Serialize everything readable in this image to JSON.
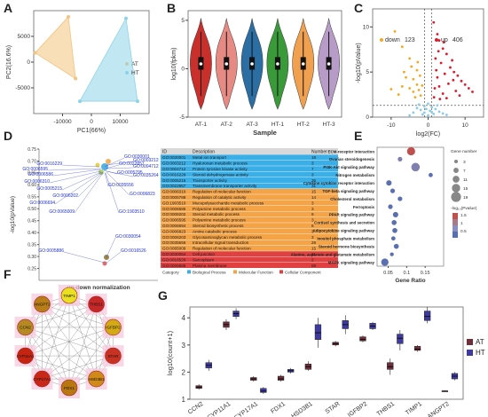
{
  "colors": {
    "AT": "#f2c47e",
    "HT": "#8dd3e8",
    "violin": [
      "#c9302c",
      "#e88a84",
      "#2b6ea3",
      "#3a9a3a",
      "#f0a04e",
      "#b89cc8"
    ],
    "volcano_up": "#e0182b",
    "volcano_down": "#f2a91f",
    "volcano_ns": "#8ecbe6",
    "box_AT": "#6e2e3a",
    "box_HT": "#3e3aa0",
    "go_band": [
      "#3aaee6",
      "#f4a347",
      "#e04040"
    ]
  },
  "panels": {
    "A": {
      "label": "A"
    },
    "B": {
      "label": "B"
    },
    "C": {
      "label": "C"
    },
    "D": {
      "label": "D"
    },
    "E": {
      "label": "E"
    },
    "F": {
      "label": "F"
    },
    "G": {
      "label": "G"
    }
  },
  "chart_data": [
    {
      "panel": "A",
      "type": "scatter",
      "xlabel": "PC1(66%)",
      "ylabel": "PC2(16.6%)",
      "xlim": [
        -20000,
        20000
      ],
      "ylim": [
        -10000,
        10000
      ],
      "xticks": [
        -10000,
        0,
        10000
      ],
      "yticks": [
        -5000,
        0,
        5000
      ],
      "series": [
        {
          "name": "AT",
          "points": [
            [
              -19500,
              1800
            ],
            [
              -8000,
              8800
            ],
            [
              -5500,
              -3200
            ]
          ]
        },
        {
          "name": "HT",
          "points": [
            [
              -4000,
              -7600
            ],
            [
              12000,
              8500
            ],
            [
              16000,
              -7600
            ]
          ]
        }
      ],
      "legend_position": "right"
    },
    {
      "panel": "B",
      "type": "violin",
      "xlabel": "Sample",
      "ylabel": "log10(fpkm)",
      "ylim": [
        -5,
        6
      ],
      "yticks": [
        -5,
        0,
        5
      ],
      "categories": [
        "AT-1",
        "AT-2",
        "AT-3",
        "HT-1",
        "HT-2",
        "HT-3"
      ],
      "medians": [
        0.5,
        0.5,
        0.5,
        0.5,
        0.5,
        0.5
      ],
      "q1": [
        -0.1,
        -0.1,
        -0.1,
        -0.1,
        -0.1,
        -0.1
      ],
      "q3": [
        1.2,
        1.2,
        1.2,
        1.2,
        1.2,
        1.2
      ],
      "min": [
        -4.2,
        -4.2,
        -4.2,
        -4.2,
        -4.2,
        -4.2
      ],
      "max": [
        5.2,
        5.2,
        5.2,
        5.2,
        5.2,
        5.2
      ]
    },
    {
      "panel": "C",
      "type": "scatter",
      "xlabel": "log2(FC)",
      "ylabel": "-log10(pValue)",
      "xlim": [
        -15,
        15
      ],
      "ylim": [
        0,
        12
      ],
      "xticks": [
        -10,
        0,
        10
      ],
      "yticks": [
        0,
        5,
        10
      ],
      "annotations": [
        {
          "text": "down",
          "count": "123"
        },
        {
          "text": "up",
          "count": "406"
        }
      ],
      "series": [
        {
          "name": "down",
          "points": [
            [
              -9,
              9.5
            ],
            [
              -7,
              7.8
            ],
            [
              -5,
              6.5
            ],
            [
              -6.5,
              5
            ],
            [
              -4,
              4.2
            ],
            [
              -3,
              3.6
            ],
            [
              -2.5,
              3
            ],
            [
              -5,
              3.2
            ],
            [
              -8,
              2.5
            ],
            [
              -3.5,
              2.2
            ],
            [
              -2,
              2.4
            ],
            [
              -6,
              4.4
            ],
            [
              -4.5,
              5.6
            ],
            [
              -3,
              5.2
            ],
            [
              -2.2,
              4.6
            ],
            [
              -1.6,
              3.5
            ],
            [
              -7,
              3.4
            ],
            [
              -10,
              3.1
            ],
            [
              -4,
              2.8
            ],
            [
              -2.8,
              6.1
            ]
          ]
        },
        {
          "name": "up",
          "points": [
            [
              1.5,
              10.5
            ],
            [
              2.5,
              9.2
            ],
            [
              3,
              8.5
            ],
            [
              4,
              7.6
            ],
            [
              5,
              7
            ],
            [
              2,
              6.5
            ],
            [
              3.5,
              6
            ],
            [
              6,
              5.5
            ],
            [
              7,
              5
            ],
            [
              8,
              4.6
            ],
            [
              2.5,
              4.4
            ],
            [
              4.5,
              4.8
            ],
            [
              9,
              4
            ],
            [
              10,
              3.6
            ],
            [
              11,
              3.2
            ],
            [
              3,
              3.4
            ],
            [
              5.5,
              3.7
            ],
            [
              1.8,
              3.2
            ],
            [
              2.2,
              5.2
            ],
            [
              6.5,
              6.3
            ],
            [
              12,
              2.8
            ],
            [
              4,
              2.6
            ],
            [
              8.5,
              2.4
            ],
            [
              1.6,
              2.2
            ],
            [
              3.2,
              2
            ],
            [
              5,
              2.1
            ],
            [
              7.5,
              2.9
            ],
            [
              2.8,
              7.3
            ],
            [
              4.2,
              8.3
            ],
            [
              6.8,
              4.1
            ]
          ]
        },
        {
          "name": "ns",
          "points": [
            [
              -3,
              1
            ],
            [
              -2,
              0.8
            ],
            [
              -1,
              1.2
            ],
            [
              0,
              1.5
            ],
            [
              1,
              1.1
            ],
            [
              2,
              0.9
            ],
            [
              3,
              0.6
            ],
            [
              -4,
              0.5
            ],
            [
              4,
              0.4
            ],
            [
              -1.5,
              0.3
            ],
            [
              1.5,
              0.35
            ],
            [
              0.5,
              0.7
            ],
            [
              -0.5,
              0.9
            ],
            [
              -2.5,
              1.4
            ],
            [
              2.5,
              1.3
            ],
            [
              -5,
              0.2
            ],
            [
              5,
              0.25
            ],
            [
              0,
              0.2
            ],
            [
              -1,
              0.5
            ],
            [
              1,
              0.55
            ]
          ]
        }
      ]
    },
    {
      "panel": "D",
      "type": "scatter",
      "xlabel": "up-down normalization",
      "ylabel": "-log10(pValue)",
      "ylim": [
        0.2,
        0.75
      ],
      "yticks": [
        0.25,
        0.3,
        0.35,
        0.4,
        0.45,
        0.5,
        0.55,
        0.6,
        0.65,
        0.7,
        0.75
      ],
      "labels": [
        "GO:0030001",
        "GO:0003212",
        "GO:0022857",
        "GO:0016229",
        "GO:0004712",
        "GO:0006595",
        "GO:0006586",
        "GO:0005795",
        "GO:0006310",
        "GO:0035264",
        "GO:0005215",
        "GO:0006202",
        "GO:0035556",
        "GO:0006823",
        "GO:0006694",
        "GO:0065009",
        "GO:1903510",
        "GO:0030054",
        "GO:0005886",
        "GO:0016526"
      ],
      "table": {
        "headers": [
          "ID",
          "Description",
          "Number"
        ],
        "rows": [
          [
            "GO:0030001",
            "Metal ion transport",
            "18"
          ],
          [
            "GO:0003212",
            "Hyaluronan metabolic process",
            "3"
          ],
          [
            "GO:0004712",
            "Protein tyrosine kinase activity",
            "7"
          ],
          [
            "GO:0016229",
            "Steroid dehydrogenase activity",
            "3"
          ],
          [
            "GO:0005215",
            "Transporter activity",
            "35"
          ],
          [
            "GO:0022857",
            "Transmembrane transporter activity",
            "31"
          ],
          [
            "GO:0006310",
            "Regulation of molecular function",
            "15"
          ],
          [
            "GO:0005788",
            "Regulation of catalytic activity",
            "14"
          ],
          [
            "GO:1903510",
            "Mucopolysaccharide metabolic process",
            "3"
          ],
          [
            "GO:0006586",
            "Polyamine metabolic process",
            "3"
          ],
          [
            "GO:0008202",
            "Steroid metabolic process",
            "9"
          ],
          [
            "GO:0006595",
            "Polyamine metabolic process",
            "3"
          ],
          [
            "GO:0006694",
            "Steroid biosynthetic process",
            "6"
          ],
          [
            "GO:0006823",
            "Amine catabolic process",
            "3"
          ],
          [
            "GO:0006203",
            "Glycosaminoglycan metabolic process",
            "3"
          ],
          [
            "GO:0035556",
            "Intracellular signal transduction",
            "28"
          ],
          [
            "GO:0065009",
            "Regulation of molecular function",
            "15"
          ],
          [
            "GO:0030054",
            "Cell junction",
            "21"
          ],
          [
            "GO:0016526",
            "Sarcoplasm",
            "2"
          ],
          [
            "GO:0005886",
            "Plasma membrane",
            "59"
          ]
        ],
        "band": [
          0,
          0,
          0,
          0,
          0,
          0,
          1,
          1,
          1,
          1,
          1,
          1,
          1,
          1,
          1,
          1,
          1,
          2,
          2,
          2
        ]
      },
      "legend": [
        "Category",
        "Biological Process",
        "Molecular Function",
        "Cellular Component"
      ]
    },
    {
      "panel": "E",
      "type": "scatter",
      "xlabel": "Gene Ratio",
      "xlim": [
        0.02,
        0.2
      ],
      "xticks": [
        0.05,
        0.1,
        0.15
      ],
      "categories": [
        "ECM-receptor interaction",
        "Ovarian steroidogenesis",
        "PI3K-Akt signaling pathway",
        "Nitrogen metabolism",
        "Cytokine-cytokine receptor interaction",
        "TGF-beta signaling pathway",
        "Cholesterol metabolism",
        "Ferroptosis",
        "PPAR signaling pathway",
        "Cortisol synthesis and secretion",
        "Adipocytokine signaling pathway",
        "Inositol phosphate metabolism",
        "Steroid hormone biosynthesis",
        "Alanine, aspartate and glutamate metabolism",
        "MAPK signaling pathway"
      ],
      "gene_ratio": [
        0.112,
        0.082,
        0.124,
        0.165,
        0.052,
        0.062,
        0.082,
        0.056,
        0.07,
        0.066,
        0.068,
        0.064,
        0.072,
        0.06,
        0.041
      ],
      "gene_number": [
        14,
        5,
        15,
        4,
        7,
        5,
        5,
        5,
        7,
        6,
        6,
        4,
        6,
        3,
        12
      ],
      "log10_pvalue": [
        2.9,
        1.3,
        1.2,
        0.9,
        0.8,
        0.8,
        0.7,
        0.7,
        0.7,
        0.7,
        0.7,
        0.7,
        0.7,
        0.6,
        0.6
      ],
      "size_legend_title": "Gene number",
      "size_legend": [
        "3",
        "7",
        "11",
        "15",
        "19"
      ],
      "color_legend_title": "-log₁₀(Pvalue)",
      "color_legend": [
        "1.5",
        "1",
        "0.5"
      ]
    },
    {
      "panel": "F",
      "type": "network",
      "nodes": [
        "TIMP1",
        "THBS1",
        "IGFBP2",
        "STAR",
        "HSD3B1",
        "FDX1",
        "CYP17A1",
        "CYP11A1",
        "CCN2",
        "ANGPT2"
      ]
    },
    {
      "panel": "G",
      "type": "box",
      "ylabel": "log10(count+1)",
      "ylim": [
        1,
        4.4
      ],
      "yticks": [
        1,
        2,
        3,
        4
      ],
      "categories": [
        "CCN2",
        "CYP11A1",
        "CYP17A1",
        "FDX1",
        "HSD3B1",
        "STAR",
        "IGFBP2",
        "THBS1",
        "TIMP1",
        "ANGPT2"
      ],
      "series": [
        {
          "name": "AT",
          "min": [
            1.35,
            3.55,
            1.65,
            1.65,
            2.05,
            2.95,
            3.1,
            1.9,
            2.75,
            1.3
          ],
          "q1": [
            1.4,
            3.65,
            1.7,
            1.7,
            2.1,
            3.0,
            3.15,
            2.1,
            2.8,
            1.3
          ],
          "median": [
            1.45,
            3.75,
            1.75,
            1.75,
            2.2,
            3.05,
            3.2,
            2.2,
            2.85,
            1.3
          ],
          "q3": [
            1.5,
            3.85,
            1.8,
            1.85,
            2.3,
            3.1,
            3.3,
            2.35,
            2.95,
            1.31
          ],
          "max": [
            1.55,
            3.95,
            1.85,
            1.9,
            2.4,
            3.15,
            3.35,
            2.5,
            3.0,
            1.32
          ]
        },
        {
          "name": "HT",
          "min": [
            2.05,
            3.95,
            1.2,
            1.95,
            2.9,
            3.4,
            3.55,
            2.8,
            3.8,
            1.7
          ],
          "q1": [
            2.15,
            4.05,
            1.25,
            2.0,
            3.2,
            3.6,
            3.6,
            3.05,
            3.9,
            1.75
          ],
          "median": [
            2.25,
            4.15,
            1.3,
            2.05,
            3.45,
            3.75,
            3.7,
            3.25,
            4.05,
            1.85
          ],
          "q3": [
            2.35,
            4.25,
            1.4,
            2.1,
            3.75,
            3.9,
            3.8,
            3.4,
            4.25,
            1.95
          ],
          "max": [
            2.45,
            4.35,
            1.45,
            2.15,
            4.0,
            4.1,
            3.85,
            3.55,
            4.4,
            2.0
          ]
        }
      ],
      "legend": [
        "AT",
        "HT"
      ]
    }
  ]
}
